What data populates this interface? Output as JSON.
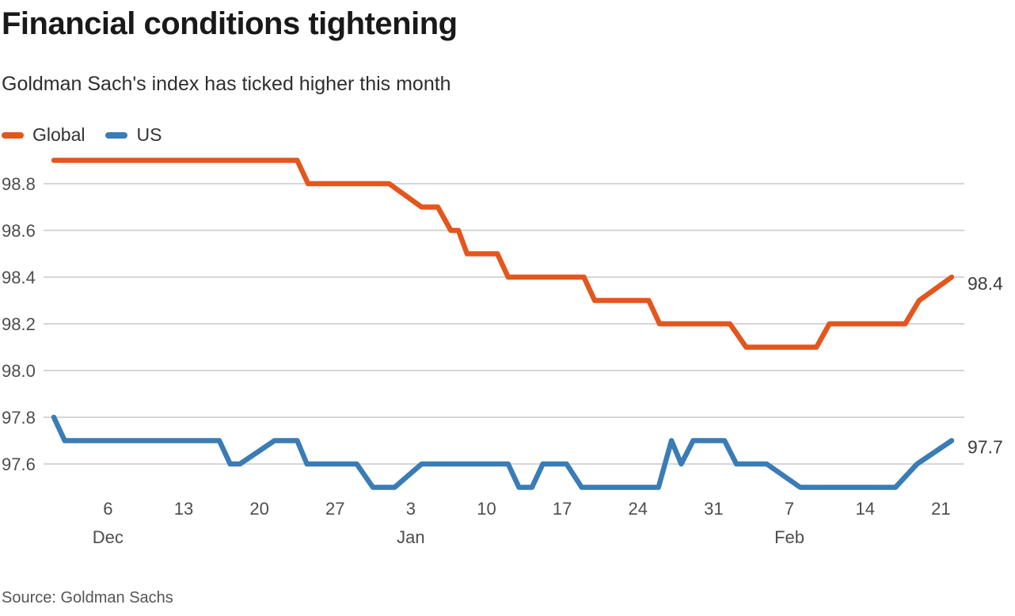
{
  "header": {
    "title": "Financial conditions tightening",
    "subtitle": "Goldman Sach's index has ticked higher this month"
  },
  "legend": {
    "items": [
      {
        "label": "Global",
        "color": "#e3561d"
      },
      {
        "label": "US",
        "color": "#3a7cb5"
      }
    ]
  },
  "source": "Source: Goldman Sachs",
  "colors": {
    "global_line": "#e3561d",
    "us_line": "#3a7cb5",
    "gridline": "#c9c9c9",
    "axis_text": "#4d4d4d",
    "end_label_text": "#3d3d3d"
  },
  "chart_data": {
    "type": "line",
    "title": "Financial conditions tightening",
    "subtitle": "Goldman Sach's index has ticked higher this month",
    "source": "Source: Goldman Sachs",
    "legend_position": "top-left",
    "grid": "horizontal-only",
    "x_axis": {
      "label": "",
      "unit": "days offset from Dec 1",
      "start": "Dec 1",
      "end": "Feb 22",
      "domain_days": 83,
      "ticks": [
        {
          "day": 5,
          "label": "6"
        },
        {
          "day": 12,
          "label": "13"
        },
        {
          "day": 19,
          "label": "20"
        },
        {
          "day": 26,
          "label": "27"
        },
        {
          "day": 33,
          "label": "3"
        },
        {
          "day": 40,
          "label": "10"
        },
        {
          "day": 47,
          "label": "17"
        },
        {
          "day": 54,
          "label": "24"
        },
        {
          "day": 61,
          "label": "31"
        },
        {
          "day": 68,
          "label": "7"
        },
        {
          "day": 75,
          "label": "14"
        },
        {
          "day": 82,
          "label": "21"
        }
      ],
      "month_labels": [
        {
          "day": 5,
          "label": "Dec"
        },
        {
          "day": 33,
          "label": "Jan"
        },
        {
          "day": 68,
          "label": "Feb"
        }
      ]
    },
    "y_axis": {
      "label": "",
      "ticks": [
        "98.8",
        "98.6",
        "98.4",
        "98.2",
        "98.0",
        "97.8",
        "97.6"
      ],
      "range": [
        97.45,
        98.95
      ],
      "gridlines": true
    },
    "series": [
      {
        "name": "Global",
        "color": "#e3561d",
        "end_label": "98.4",
        "end_value": 98.4,
        "points_day_value": [
          [
            0,
            98.9
          ],
          [
            22.5,
            98.9
          ],
          [
            23.5,
            98.8
          ],
          [
            31,
            98.8
          ],
          [
            34,
            98.7
          ],
          [
            35.5,
            98.7
          ],
          [
            36.7,
            98.6
          ],
          [
            37.4,
            98.6
          ],
          [
            38.2,
            98.5
          ],
          [
            41,
            98.5
          ],
          [
            42,
            98.4
          ],
          [
            49,
            98.4
          ],
          [
            50,
            98.3
          ],
          [
            55,
            98.3
          ],
          [
            56,
            98.2
          ],
          [
            62.5,
            98.2
          ],
          [
            64,
            98.1
          ],
          [
            70.5,
            98.1
          ],
          [
            71.7,
            98.2
          ],
          [
            78.7,
            98.2
          ],
          [
            80,
            98.3
          ],
          [
            83,
            98.4
          ]
        ]
      },
      {
        "name": "US",
        "color": "#3a7cb5",
        "end_label": "97.7",
        "end_value": 97.7,
        "points_day_value": [
          [
            0,
            97.8
          ],
          [
            1,
            97.7
          ],
          [
            15.3,
            97.7
          ],
          [
            16.3,
            97.6
          ],
          [
            17.2,
            97.6
          ],
          [
            20.4,
            97.7
          ],
          [
            22.5,
            97.7
          ],
          [
            23.4,
            97.6
          ],
          [
            28,
            97.6
          ],
          [
            29.5,
            97.5
          ],
          [
            31.5,
            97.5
          ],
          [
            34,
            97.6
          ],
          [
            42,
            97.6
          ],
          [
            43,
            97.5
          ],
          [
            44.2,
            97.5
          ],
          [
            45.2,
            97.6
          ],
          [
            47.4,
            97.6
          ],
          [
            48.8,
            97.5
          ],
          [
            55.9,
            97.5
          ],
          [
            57.1,
            97.7
          ],
          [
            58,
            97.6
          ],
          [
            59.1,
            97.7
          ],
          [
            62,
            97.7
          ],
          [
            63.1,
            97.6
          ],
          [
            65.9,
            97.6
          ],
          [
            69,
            97.5
          ],
          [
            77.8,
            97.5
          ],
          [
            79.8,
            97.6
          ],
          [
            83,
            97.7
          ]
        ]
      }
    ]
  }
}
